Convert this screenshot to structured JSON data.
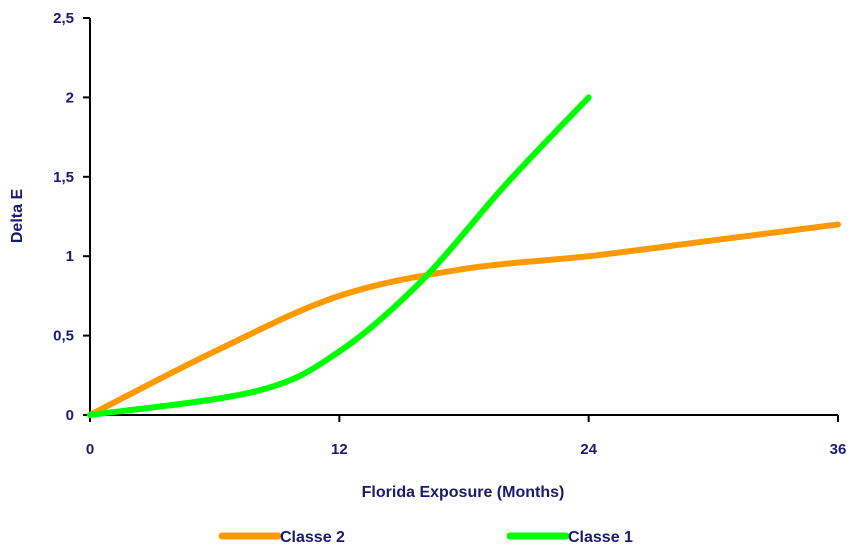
{
  "chart_data": {
    "type": "line",
    "xlabel": "Florida  Exposure (Months)",
    "ylabel": "Delta E",
    "xlim": [
      0,
      36
    ],
    "ylim": [
      0,
      2.5
    ],
    "x_ticks": [
      "0",
      "12",
      "24",
      "36"
    ],
    "x_tick_values": [
      0,
      12,
      24,
      36
    ],
    "y_ticks": [
      "0",
      "0,5",
      "1",
      "1,5",
      "2",
      "2,5"
    ],
    "y_tick_values": [
      0,
      0.5,
      1,
      1.5,
      2,
      2.5
    ],
    "grid": false,
    "legend_position": "bottom",
    "series": [
      {
        "name": "Classe 2",
        "color": "#ff9900",
        "x": [
          0,
          6,
          12,
          18,
          24,
          30,
          36
        ],
        "y": [
          0,
          0.4,
          0.75,
          0.92,
          1.0,
          1.1,
          1.2
        ]
      },
      {
        "name": "Classe 1",
        "color": "#00ff00",
        "x": [
          0,
          8,
          12,
          16,
          20,
          24
        ],
        "y": [
          0,
          0.15,
          0.4,
          0.85,
          1.45,
          2.0
        ]
      }
    ]
  }
}
